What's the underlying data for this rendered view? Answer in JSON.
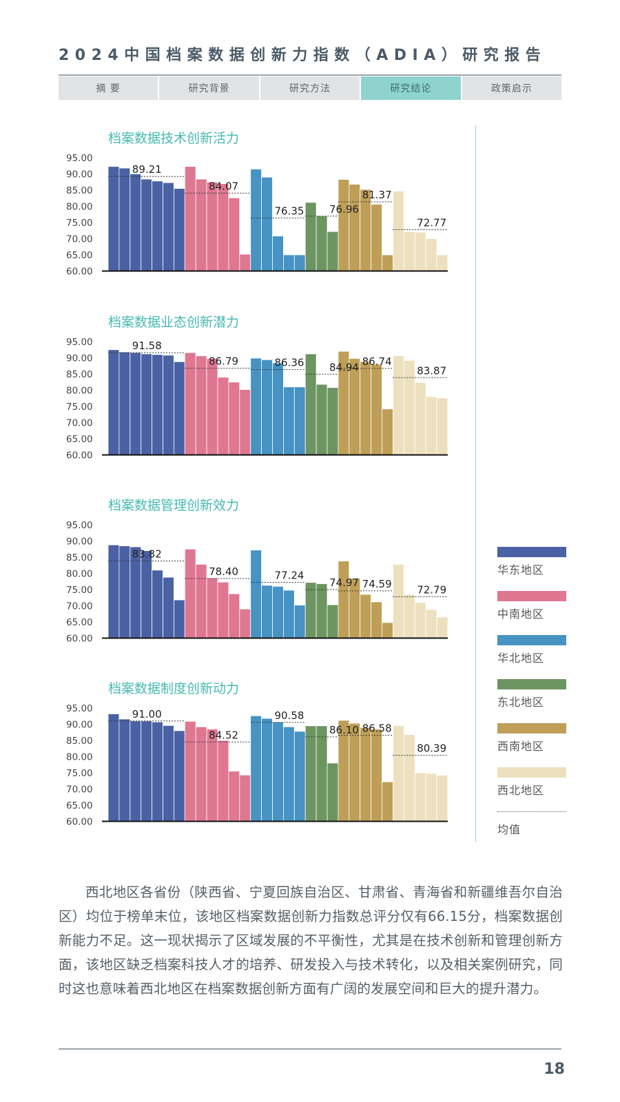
{
  "header": {
    "title": "2024中国档案数据创新力指数（ADIA）研究报告",
    "tabs": [
      {
        "label": "摘 要",
        "active": false
      },
      {
        "label": "研究背景",
        "active": false
      },
      {
        "label": "研究方法",
        "active": false
      },
      {
        "label": "研究结论",
        "active": true
      },
      {
        "label": "政策启示",
        "active": false
      }
    ]
  },
  "legend": {
    "items": [
      {
        "label": "华东地区",
        "color": "#4a62a4"
      },
      {
        "label": "中南地区",
        "color": "#df7791"
      },
      {
        "label": "华北地区",
        "color": "#4693c4"
      },
      {
        "label": "东北地区",
        "color": "#6c9561"
      },
      {
        "label": "西南地区",
        "color": "#bf9f57"
      },
      {
        "label": "西北地区",
        "color": "#ede0bf"
      }
    ],
    "mean_label": "均值"
  },
  "chart_data": [
    {
      "type": "bar",
      "title": "档案数据技术创新活力",
      "ylim": [
        60,
        95
      ],
      "yticks": [
        "95.00",
        "90.00",
        "85.00",
        "80.00",
        "75.00",
        "70.00",
        "65.00",
        "60.00"
      ],
      "series": [
        {
          "name": "华东地区",
          "values": [
            92.3,
            91.8,
            90.0,
            88.4,
            87.8,
            87.3,
            85.5
          ],
          "mean": 89.21,
          "mean_label": "89.21"
        },
        {
          "name": "中南地区",
          "values": [
            92.3,
            88.4,
            87.5,
            87.0,
            82.6,
            65.2
          ],
          "mean": 84.07,
          "mean_label": "84.07"
        },
        {
          "name": "华北地区",
          "values": [
            91.5,
            89.0,
            70.8,
            65.0,
            65.0
          ],
          "mean": 76.35,
          "mean_label": "76.35"
        },
        {
          "name": "东北地区",
          "values": [
            81.2,
            77.0,
            72.2
          ],
          "mean": 76.96,
          "mean_label": "76.96"
        },
        {
          "name": "西南地区",
          "values": [
            88.3,
            86.8,
            85.2,
            80.6,
            65.0
          ],
          "mean": 81.37,
          "mean_label": "81.37"
        },
        {
          "name": "西北地区",
          "values": [
            84.7,
            72.2,
            72.0,
            70.0,
            65.0
          ],
          "mean": 72.77,
          "mean_label": "72.77"
        }
      ]
    },
    {
      "type": "bar",
      "title": "档案数据业态创新潜力",
      "ylim": [
        60,
        95
      ],
      "yticks": [
        "95.00",
        "90.00",
        "85.00",
        "80.00",
        "75.00",
        "70.00",
        "65.00",
        "60.00"
      ],
      "series": [
        {
          "name": "华东地区",
          "values": [
            92.5,
            91.8,
            91.6,
            91.2,
            91.0,
            90.8,
            88.8
          ],
          "mean": 91.58,
          "mean_label": "91.58"
        },
        {
          "name": "中南地区",
          "values": [
            91.6,
            90.6,
            89.8,
            84.0,
            82.5,
            80.2
          ],
          "mean": 86.79,
          "mean_label": "86.79"
        },
        {
          "name": "华北地区",
          "values": [
            89.9,
            89.4,
            88.4,
            81.0,
            81.0
          ],
          "mean": 86.36,
          "mean_label": "86.36"
        },
        {
          "name": "东北地区",
          "values": [
            91.2,
            81.8,
            80.8
          ],
          "mean": 84.94,
          "mean_label": "84.94"
        },
        {
          "name": "西南地区",
          "values": [
            92.0,
            89.8,
            88.8,
            88.0,
            74.2
          ],
          "mean": 86.74,
          "mean_label": "86.74"
        },
        {
          "name": "西北地区",
          "values": [
            90.6,
            89.2,
            82.4,
            78.0,
            77.6
          ],
          "mean": 83.87,
          "mean_label": "83.87"
        }
      ]
    },
    {
      "type": "bar",
      "title": "档案数据管理创新效力",
      "ylim": [
        60,
        95
      ],
      "yticks": [
        "95.00",
        "90.00",
        "85.00",
        "80.00",
        "75.00",
        "70.00",
        "65.00",
        "60.00"
      ],
      "series": [
        {
          "name": "华东地区",
          "values": [
            88.8,
            88.5,
            88.2,
            87.0,
            81.0,
            78.8,
            71.8
          ],
          "mean": 83.82,
          "mean_label": "83.82"
        },
        {
          "name": "中南地区",
          "values": [
            87.5,
            82.8,
            78.6,
            77.3,
            73.7,
            69.0
          ],
          "mean": 78.4,
          "mean_label": "78.40"
        },
        {
          "name": "华北地区",
          "values": [
            87.2,
            76.3,
            76.0,
            74.8,
            70.2
          ],
          "mean": 77.24,
          "mean_label": "77.24"
        },
        {
          "name": "东北地区",
          "values": [
            77.2,
            76.8,
            70.3
          ],
          "mean": 74.97,
          "mean_label": "74.97"
        },
        {
          "name": "西南地区",
          "values": [
            83.8,
            78.5,
            73.5,
            71.2,
            64.8
          ],
          "mean": 74.59,
          "mean_label": "74.59"
        },
        {
          "name": "西北地区",
          "values": [
            82.8,
            73.5,
            71.0,
            68.8,
            66.5
          ],
          "mean": 72.79,
          "mean_label": "72.79"
        }
      ]
    },
    {
      "type": "bar",
      "title": "档案数据制度创新动力",
      "ylim": [
        60,
        95
      ],
      "yticks": [
        "95.00",
        "90.00",
        "85.00",
        "80.00",
        "75.00",
        "70.00",
        "65.00",
        "60.00"
      ],
      "series": [
        {
          "name": "华东地区",
          "values": [
            93.2,
            91.6,
            91.0,
            91.0,
            90.7,
            89.6,
            88.0
          ],
          "mean": 91.0,
          "mean_label": "91.00"
        },
        {
          "name": "中南地区",
          "values": [
            90.9,
            89.2,
            88.5,
            85.0,
            75.5,
            74.3
          ],
          "mean": 84.52,
          "mean_label": "84.52"
        },
        {
          "name": "华北地区",
          "values": [
            92.6,
            91.8,
            90.7,
            89.2,
            87.8
          ],
          "mean": 90.58,
          "mean_label": "90.58"
        },
        {
          "name": "东北地区",
          "values": [
            89.5,
            89.5,
            78.0
          ],
          "mean": 86.1,
          "mean_label": "86.10"
        },
        {
          "name": "西南地区",
          "values": [
            91.2,
            90.3,
            89.0,
            88.5,
            72.2
          ],
          "mean": 86.58,
          "mean_label": "86.58"
        },
        {
          "name": "西北地区",
          "values": [
            89.6,
            86.8,
            75.0,
            74.8,
            74.3
          ],
          "mean": 80.39,
          "mean_label": "80.39"
        }
      ]
    }
  ],
  "body": {
    "paragraph": "西北地区各省份（陕西省、宁夏回族自治区、甘肃省、青海省和新疆维吾尔自治区）均位于榜单末位，该地区档案数据创新力指数总评分仅有66.15分，档案数据创新能力不足。这一现状揭示了区域发展的不平衡性，尤其是在技术创新和管理创新方面，该地区缺乏档案科技人才的培养、研发投入与技术转化，以及相关案例研究，同时这也意味着西北地区在档案数据创新方面有广阔的发展空间和巨大的提升潜力。"
  },
  "footer": {
    "page_number": "18"
  }
}
